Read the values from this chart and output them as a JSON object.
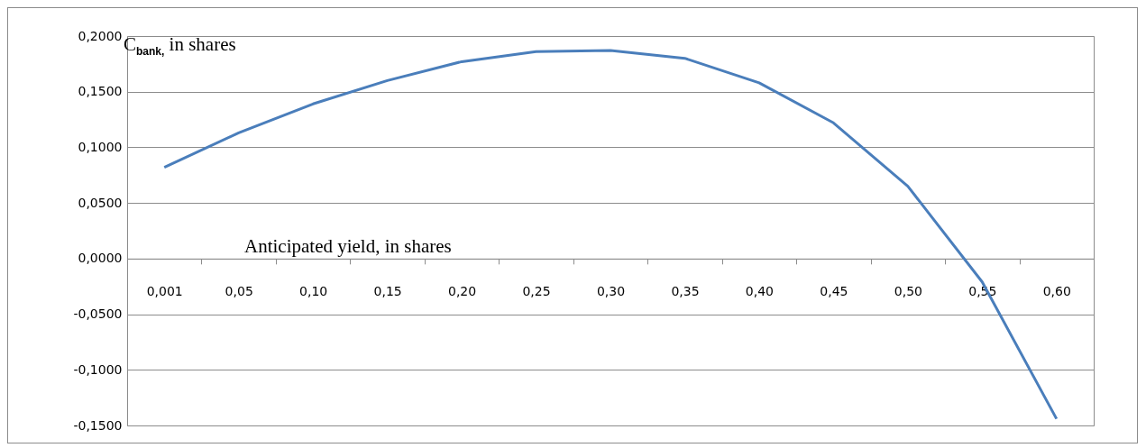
{
  "chart_data": {
    "type": "line",
    "xlabel": "Anticipated yield, in shares",
    "ylabel": "C$_{bank,}$ in shares",
    "categories": [
      "0,001",
      "0,05",
      "0,10",
      "0,15",
      "0,20",
      "0,25",
      "0,30",
      "0,35",
      "0,40",
      "0,45",
      "0,50",
      "0,55",
      "0,60"
    ],
    "series": [
      {
        "color": "#4a7ebb",
        "values": [
          0.082,
          0.113,
          0.139,
          0.16,
          0.177,
          0.186,
          0.187,
          0.18,
          0.158,
          0.122,
          0.065,
          -0.021,
          -0.144
        ]
      }
    ],
    "ylim": [
      -0.15,
      0.2
    ],
    "yticks": [
      {
        "value": -0.15,
        "label": "-0,1500"
      },
      {
        "value": -0.1,
        "label": "-0,1000"
      },
      {
        "value": -0.05,
        "label": "-0,0500"
      },
      {
        "value": 0,
        "label": "0,0000"
      },
      {
        "value": 0.05,
        "label": "0,0500"
      },
      {
        "value": 0.1,
        "label": "0,1000"
      },
      {
        "value": 0.15,
        "label": "0,1500"
      },
      {
        "value": 0.2,
        "label": "0,2000"
      }
    ],
    "grid": "y",
    "legend": false,
    "marker": "none",
    "line_style": "solid"
  }
}
